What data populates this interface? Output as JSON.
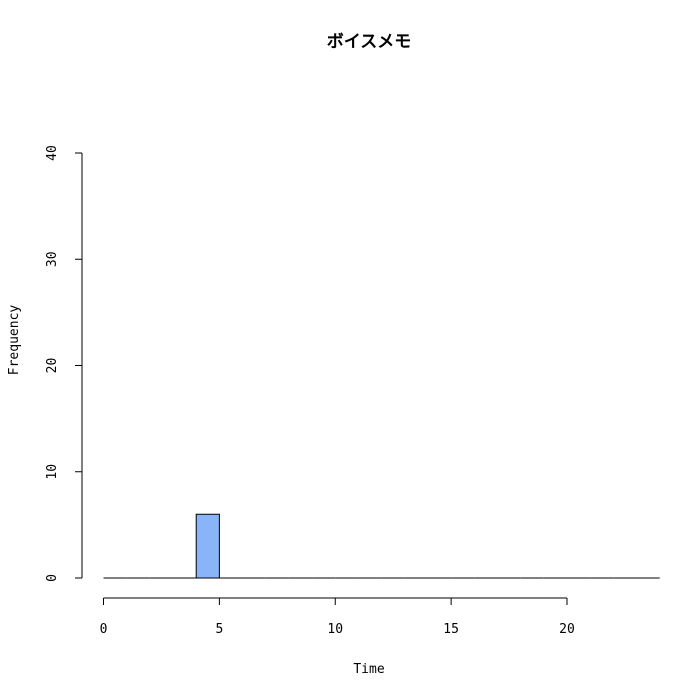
{
  "chart_data": {
    "type": "bar",
    "title": "ボイスメモ",
    "xlabel": "Time",
    "ylabel": "Frequency",
    "bin_width": 1,
    "xlim": [
      0,
      24
    ],
    "ylim": [
      0,
      40
    ],
    "x_ticks": [
      0,
      5,
      10,
      15,
      20
    ],
    "y_ticks": [
      0,
      10,
      20,
      30,
      40
    ],
    "bins": [
      {
        "start": 0,
        "end": 1,
        "count": 0
      },
      {
        "start": 1,
        "end": 2,
        "count": 0
      },
      {
        "start": 2,
        "end": 3,
        "count": 0
      },
      {
        "start": 3,
        "end": 4,
        "count": 0
      },
      {
        "start": 4,
        "end": 5,
        "count": 6
      },
      {
        "start": 5,
        "end": 6,
        "count": 0
      },
      {
        "start": 6,
        "end": 7,
        "count": 0
      },
      {
        "start": 7,
        "end": 8,
        "count": 0
      },
      {
        "start": 8,
        "end": 9,
        "count": 0
      },
      {
        "start": 9,
        "end": 10,
        "count": 0
      },
      {
        "start": 10,
        "end": 11,
        "count": 0
      },
      {
        "start": 11,
        "end": 12,
        "count": 0
      },
      {
        "start": 12,
        "end": 13,
        "count": 0
      },
      {
        "start": 13,
        "end": 14,
        "count": 0
      },
      {
        "start": 14,
        "end": 15,
        "count": 0
      },
      {
        "start": 15,
        "end": 16,
        "count": 0
      },
      {
        "start": 16,
        "end": 17,
        "count": 0
      },
      {
        "start": 17,
        "end": 18,
        "count": 0
      },
      {
        "start": 18,
        "end": 19,
        "count": 0
      },
      {
        "start": 19,
        "end": 20,
        "count": 0
      },
      {
        "start": 20,
        "end": 21,
        "count": 0
      },
      {
        "start": 21,
        "end": 22,
        "count": 0
      },
      {
        "start": 22,
        "end": 23,
        "count": 0
      },
      {
        "start": 23,
        "end": 24,
        "count": 0
      }
    ],
    "bar_color": "#8ab4f8",
    "grid": false,
    "legend": "none"
  }
}
